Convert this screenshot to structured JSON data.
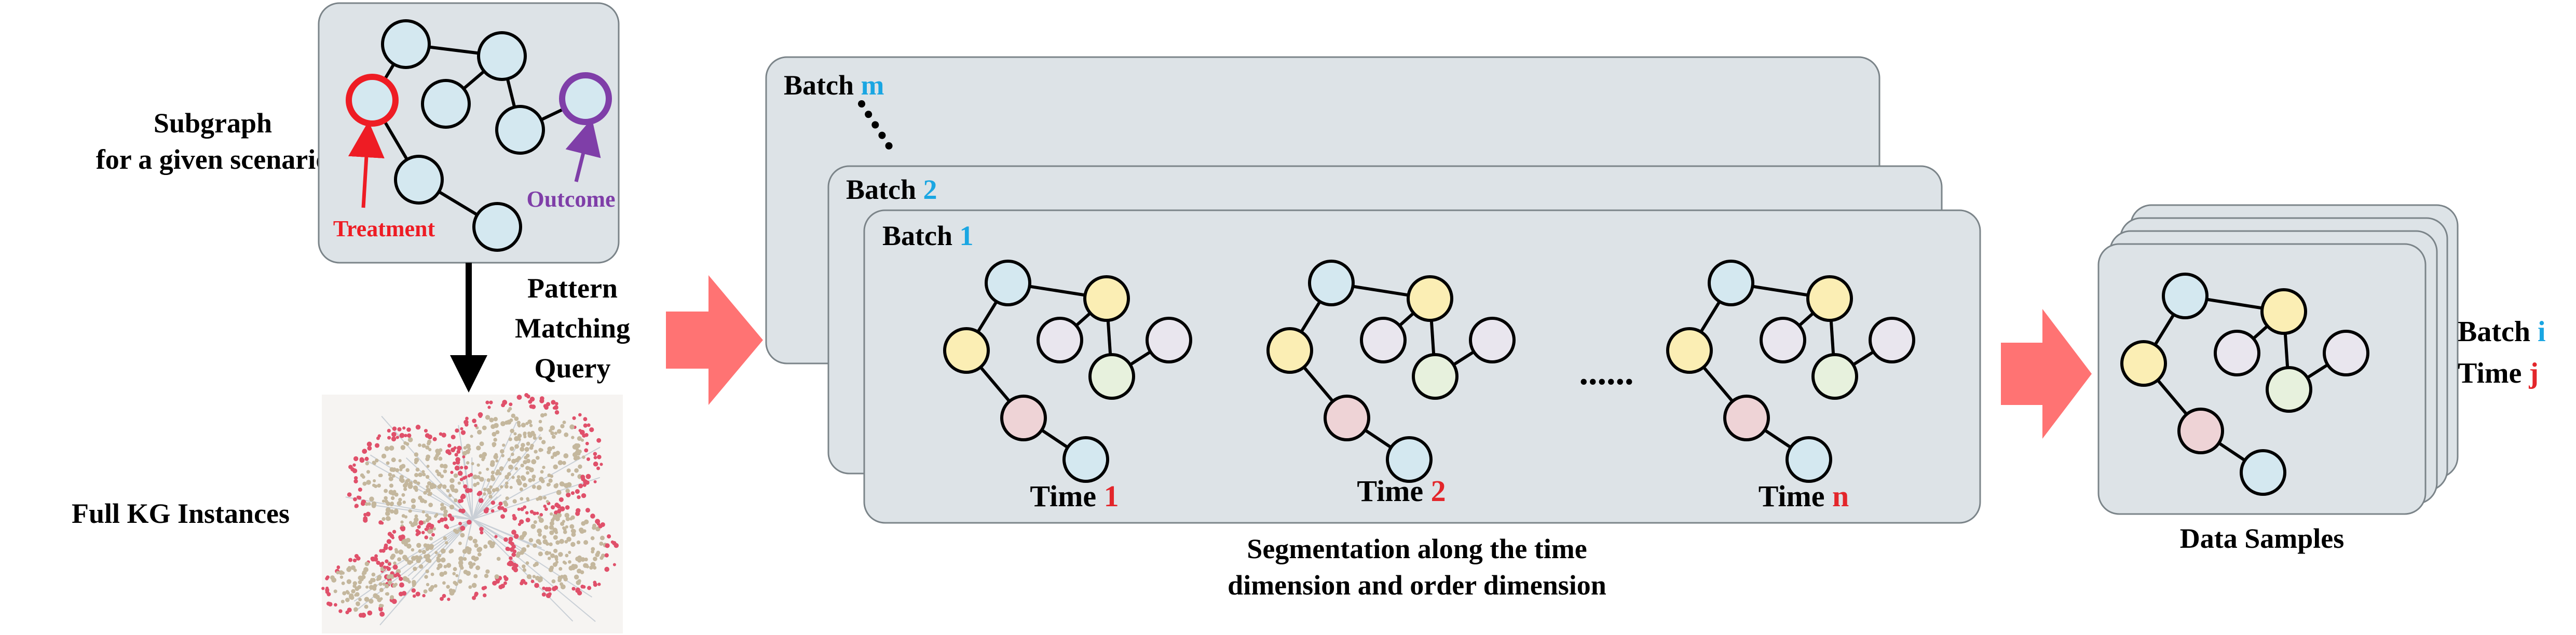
{
  "colors": {
    "panel_fill": "#dde3e7",
    "node_default": "#d4e8f0",
    "node_yellow": "#fbeeb4",
    "node_lavender": "#e9e6ee",
    "node_green": "#e7f1dd",
    "node_pink": "#eed3d6",
    "treatment": "#ee1c24",
    "outcome": "#7f3ea8",
    "accent_blue": "#1aa6e2",
    "accent_red": "#e3262b",
    "big_arrow": "#ff7373"
  },
  "scenario": {
    "label_line1": "Subgraph",
    "label_line2": "for a given scenario",
    "treatment_label": "Treatment",
    "outcome_label": "Outcome"
  },
  "full_kg": {
    "label": "Full KG Instances"
  },
  "query": {
    "line1": "Pattern",
    "line2": "Matching",
    "line3": "Query"
  },
  "batches": {
    "word": "Batch",
    "back_index": "m",
    "middle_index": "2",
    "front_index": "1"
  },
  "times": {
    "word": "Time",
    "t1": "1",
    "t2": "2",
    "tn": "n",
    "ellipsis": "......"
  },
  "segmentation": {
    "line1": "Segmentation along the time",
    "line2": "dimension and order dimension"
  },
  "samples": {
    "label": "Data Samples",
    "batch_word": "Batch",
    "batch_index": "i",
    "time_word": "Time",
    "time_index": "j"
  }
}
